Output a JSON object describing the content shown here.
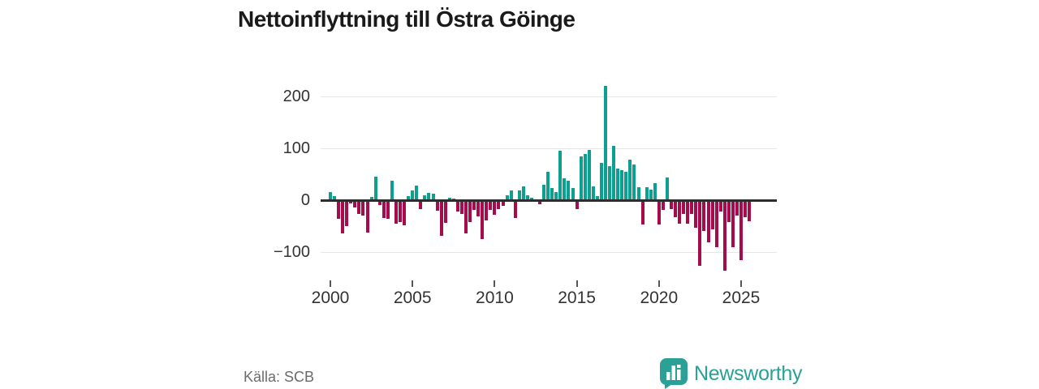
{
  "chart_data": {
    "type": "bar",
    "title": "Nettoinflyttning till Östra Göinge",
    "xlabel": "",
    "ylabel": "",
    "x_tick_years": [
      2000,
      2005,
      2010,
      2015,
      2020,
      2025
    ],
    "y_tick_values": [
      200,
      100,
      0,
      -100
    ],
    "y_tick_labels": [
      "200",
      "100",
      "0",
      "−100"
    ],
    "ylim": [
      -145,
      245
    ],
    "grid": "horizontal",
    "legend": "none",
    "frequency": "quarterly",
    "start_period": "2000Q1",
    "end_period": "2025Q3",
    "positive_color": "#0da091",
    "negative_color": "#a60c4c",
    "values": [
      15,
      8,
      -35,
      -62,
      -48,
      -5,
      -13,
      -25,
      -28,
      -60,
      7,
      45,
      -8,
      -33,
      -34,
      37,
      -43,
      -40,
      -46,
      8,
      19,
      28,
      -15,
      10,
      14,
      13,
      -18,
      -67,
      -42,
      4,
      3,
      -20,
      -25,
      -62,
      -40,
      -17,
      -30,
      -73,
      -38,
      -17,
      -27,
      -15,
      -9,
      10,
      19,
      -33,
      18,
      27,
      9,
      5,
      2,
      -7,
      29,
      55,
      23,
      16,
      95,
      42,
      37,
      24,
      -15,
      84,
      89,
      97,
      27,
      8,
      71,
      220,
      66,
      105,
      61,
      58,
      55,
      78,
      68,
      25,
      -45,
      25,
      20,
      32,
      -45,
      -17,
      44,
      -15,
      -31,
      -44,
      -25,
      -44,
      -25,
      -52,
      -125,
      -57,
      -80,
      -55,
      -88,
      -20,
      -134,
      -41,
      -88,
      -28,
      -114,
      -31,
      -39
    ]
  },
  "footer": {
    "source_label": "Källa: SCB",
    "brand": "Newsworthy"
  }
}
